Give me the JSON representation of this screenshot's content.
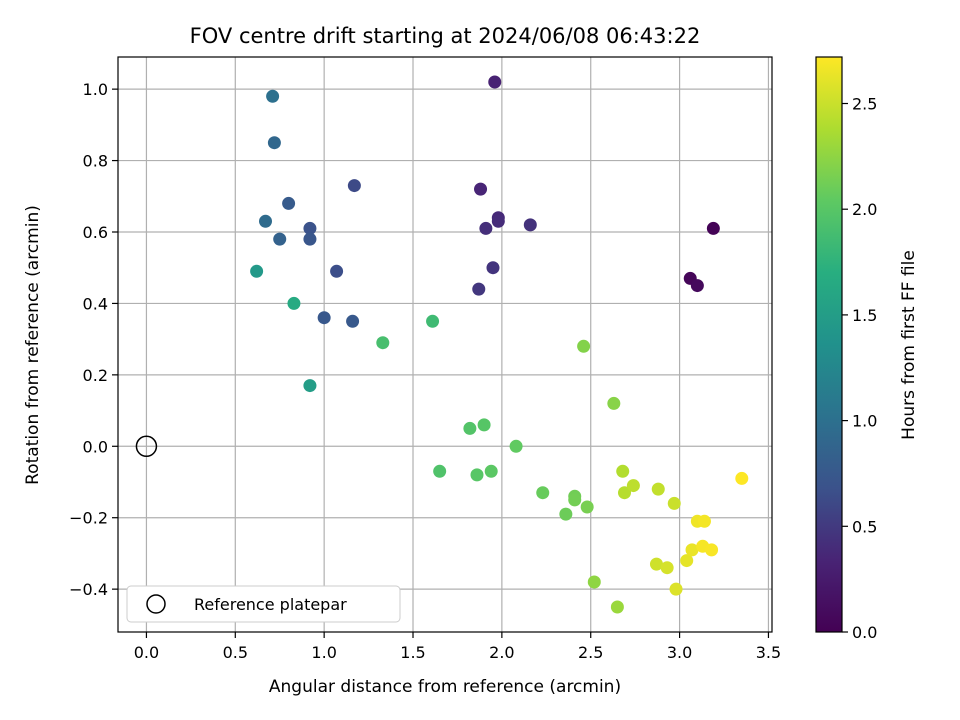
{
  "chart_data": {
    "type": "scatter",
    "title": "FOV centre drift starting at 2024/06/08 06:43:22",
    "xlabel": "Angular distance from reference (arcmin)",
    "ylabel": "Rotation from reference (arcmin)",
    "xlim": [
      -0.16,
      3.52
    ],
    "ylim": [
      -0.52,
      1.09
    ],
    "xticks": [
      0.0,
      0.5,
      1.0,
      1.5,
      2.0,
      2.5,
      3.0,
      3.5
    ],
    "xtick_labels": [
      "0.0",
      "0.5",
      "1.0",
      "1.5",
      "2.0",
      "2.5",
      "3.0",
      "3.5"
    ],
    "yticks": [
      -0.4,
      -0.2,
      0.0,
      0.2,
      0.4,
      0.6,
      0.8,
      1.0
    ],
    "ytick_labels": [
      "−0.4",
      "−0.2",
      "0.0",
      "0.2",
      "0.4",
      "0.6",
      "0.8",
      "1.0"
    ],
    "grid": true,
    "legend": {
      "placement": "lower-left",
      "entries": [
        {
          "label": "Reference platepar",
          "marker": "open-circle"
        }
      ]
    },
    "reference_point": {
      "x": 0.0,
      "y": 0.0
    },
    "colorbar": {
      "label": "Hours from first FF file",
      "colormap": "viridis",
      "range": [
        0.0,
        2.72
      ],
      "ticks": [
        0.0,
        0.5,
        1.0,
        1.5,
        2.0,
        2.5
      ],
      "tick_labels": [
        "0.0",
        "0.5",
        "1.0",
        "1.5",
        "2.0",
        "2.5"
      ]
    },
    "points": [
      {
        "x": 3.19,
        "y": 0.61,
        "c": 0.02
      },
      {
        "x": 3.06,
        "y": 0.47,
        "c": 0.05
      },
      {
        "x": 3.1,
        "y": 0.45,
        "c": 0.08
      },
      {
        "x": 1.96,
        "y": 1.02,
        "c": 0.32
      },
      {
        "x": 1.88,
        "y": 0.72,
        "c": 0.35
      },
      {
        "x": 1.98,
        "y": 0.64,
        "c": 0.38
      },
      {
        "x": 1.98,
        "y": 0.63,
        "c": 0.4
      },
      {
        "x": 1.91,
        "y": 0.61,
        "c": 0.42
      },
      {
        "x": 2.16,
        "y": 0.62,
        "c": 0.44
      },
      {
        "x": 1.95,
        "y": 0.5,
        "c": 0.46
      },
      {
        "x": 1.87,
        "y": 0.44,
        "c": 0.48
      },
      {
        "x": 1.17,
        "y": 0.73,
        "c": 0.62
      },
      {
        "x": 1.07,
        "y": 0.49,
        "c": 0.66
      },
      {
        "x": 0.92,
        "y": 0.61,
        "c": 0.69
      },
      {
        "x": 0.92,
        "y": 0.58,
        "c": 0.72
      },
      {
        "x": 1.0,
        "y": 0.36,
        "c": 0.74
      },
      {
        "x": 1.16,
        "y": 0.35,
        "c": 0.75
      },
      {
        "x": 0.8,
        "y": 0.68,
        "c": 0.78
      },
      {
        "x": 0.75,
        "y": 0.58,
        "c": 0.85
      },
      {
        "x": 0.72,
        "y": 0.85,
        "c": 0.9
      },
      {
        "x": 0.67,
        "y": 0.63,
        "c": 0.95
      },
      {
        "x": 0.71,
        "y": 0.98,
        "c": 1.0
      },
      {
        "x": 0.62,
        "y": 0.49,
        "c": 1.45
      },
      {
        "x": 0.92,
        "y": 0.17,
        "c": 1.5
      },
      {
        "x": 0.83,
        "y": 0.4,
        "c": 1.65
      },
      {
        "x": 1.61,
        "y": 0.35,
        "c": 1.85
      },
      {
        "x": 1.33,
        "y": 0.29,
        "c": 1.9
      },
      {
        "x": 1.65,
        "y": -0.07,
        "c": 1.95
      },
      {
        "x": 1.82,
        "y": 0.05,
        "c": 1.97
      },
      {
        "x": 1.9,
        "y": 0.06,
        "c": 1.99
      },
      {
        "x": 1.86,
        "y": -0.08,
        "c": 2.0
      },
      {
        "x": 1.94,
        "y": -0.07,
        "c": 2.02
      },
      {
        "x": 2.08,
        "y": 0.0,
        "c": 2.05
      },
      {
        "x": 2.23,
        "y": -0.13,
        "c": 2.08
      },
      {
        "x": 2.36,
        "y": -0.19,
        "c": 2.1
      },
      {
        "x": 2.41,
        "y": -0.14,
        "c": 2.12
      },
      {
        "x": 2.41,
        "y": -0.15,
        "c": 2.13
      },
      {
        "x": 2.48,
        "y": -0.17,
        "c": 2.15
      },
      {
        "x": 2.46,
        "y": 0.28,
        "c": 2.2
      },
      {
        "x": 2.63,
        "y": 0.12,
        "c": 2.22
      },
      {
        "x": 2.52,
        "y": -0.38,
        "c": 2.25
      },
      {
        "x": 2.65,
        "y": -0.45,
        "c": 2.3
      },
      {
        "x": 2.68,
        "y": -0.07,
        "c": 2.4
      },
      {
        "x": 2.69,
        "y": -0.13,
        "c": 2.42
      },
      {
        "x": 2.74,
        "y": -0.11,
        "c": 2.45
      },
      {
        "x": 2.88,
        "y": -0.12,
        "c": 2.47
      },
      {
        "x": 2.97,
        "y": -0.16,
        "c": 2.5
      },
      {
        "x": 2.87,
        "y": -0.33,
        "c": 2.52
      },
      {
        "x": 2.93,
        "y": -0.34,
        "c": 2.55
      },
      {
        "x": 2.98,
        "y": -0.4,
        "c": 2.58
      },
      {
        "x": 3.04,
        "y": -0.32,
        "c": 2.62
      },
      {
        "x": 3.07,
        "y": -0.29,
        "c": 2.64
      },
      {
        "x": 3.1,
        "y": -0.21,
        "c": 2.66
      },
      {
        "x": 3.14,
        "y": -0.21,
        "c": 2.68
      },
      {
        "x": 3.13,
        "y": -0.28,
        "c": 2.69
      },
      {
        "x": 3.18,
        "y": -0.29,
        "c": 2.7
      },
      {
        "x": 3.35,
        "y": -0.09,
        "c": 2.72
      }
    ]
  }
}
